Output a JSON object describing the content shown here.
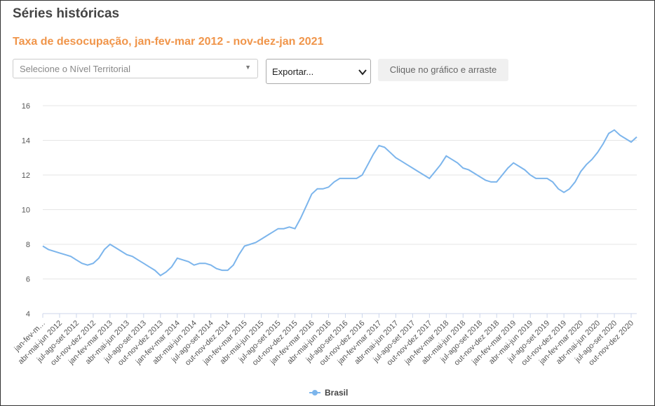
{
  "page": {
    "title": "Séries históricas",
    "chart_title": "Taxa de desocupação, jan-fev-mar 2012 - nov-dez-jan 2021",
    "territorial_select": {
      "placeholder": "Selecione o Nível Territorial"
    },
    "export_select": {
      "value": "Exportar..."
    },
    "hint_button": {
      "label": "Clique no gráfico e arraste"
    }
  },
  "colors": {
    "series": "#7cb5ec",
    "title": "#f0954a",
    "grid": "#e6e6e6"
  },
  "chart_data": {
    "type": "line",
    "title": "Taxa de desocupação, jan-fev-mar 2012 - nov-dez-jan 2021",
    "xlabel": "",
    "ylabel": "",
    "ylim": [
      4,
      16
    ],
    "y_ticks": [
      4,
      6,
      8,
      10,
      12,
      14,
      16
    ],
    "grid": true,
    "legend_position": "bottom-center",
    "x_tick_labels": [
      "jan-fev-m…",
      "abr-mai-jun 2012",
      "jul-ago-set 2012",
      "out-nov-dez 2012",
      "jan-fev-mar 2013",
      "abr-mai-jun 2013",
      "jul-ago-set 2013",
      "out-nov-dez 2013",
      "jan-fev-mar 2014",
      "abr-mai-jun 2014",
      "jul-ago-set 2014",
      "out-nov-dez 2014",
      "jan-fev-mar 2015",
      "abr-mai-jun 2015",
      "jul-ago-set 2015",
      "out-nov-dez 2015",
      "jan-fev-mar 2016",
      "abr-mai-jun 2016",
      "jul-ago-set 2016",
      "out-nov-dez 2016",
      "jan-fev-mar 2017",
      "abr-mai-jun 2017",
      "jul-ago-set 2017",
      "out-nov-dez 2017",
      "jan-fev-mar 2018",
      "abr-mai-jun 2018",
      "jul-ago-set 2018",
      "out-nov-dez 2018",
      "jan-fev-mar 2019",
      "abr-mai-jun 2019",
      "jul-ago-set 2019",
      "out-nov-dez 2019",
      "jan-fev-mar 2020",
      "abr-mai-jun 2020",
      "jul-ago-set 2020",
      "out-nov-dez 2020"
    ],
    "series": [
      {
        "name": "Brasil",
        "values": [
          7.9,
          7.7,
          7.6,
          7.5,
          7.4,
          7.3,
          7.1,
          6.9,
          6.8,
          6.9,
          7.2,
          7.7,
          8.0,
          7.8,
          7.6,
          7.4,
          7.3,
          7.1,
          6.9,
          6.7,
          6.5,
          6.2,
          6.4,
          6.7,
          7.2,
          7.1,
          7.0,
          6.8,
          6.9,
          6.9,
          6.8,
          6.6,
          6.5,
          6.5,
          6.8,
          7.4,
          7.9,
          8.0,
          8.1,
          8.3,
          8.5,
          8.7,
          8.9,
          8.9,
          9.0,
          8.9,
          9.5,
          10.2,
          10.9,
          11.2,
          11.2,
          11.3,
          11.6,
          11.8,
          11.8,
          11.8,
          11.8,
          12.0,
          12.6,
          13.2,
          13.7,
          13.6,
          13.3,
          13.0,
          12.8,
          12.6,
          12.4,
          12.2,
          12.0,
          11.8,
          12.2,
          12.6,
          13.1,
          12.9,
          12.7,
          12.4,
          12.3,
          12.1,
          11.9,
          11.7,
          11.6,
          11.6,
          12.0,
          12.4,
          12.7,
          12.5,
          12.3,
          12.0,
          11.8,
          11.8,
          11.8,
          11.6,
          11.2,
          11.0,
          11.2,
          11.6,
          12.2,
          12.6,
          12.9,
          13.3,
          13.8,
          14.4,
          14.6,
          14.3,
          14.1,
          13.9,
          14.2
        ]
      }
    ]
  }
}
